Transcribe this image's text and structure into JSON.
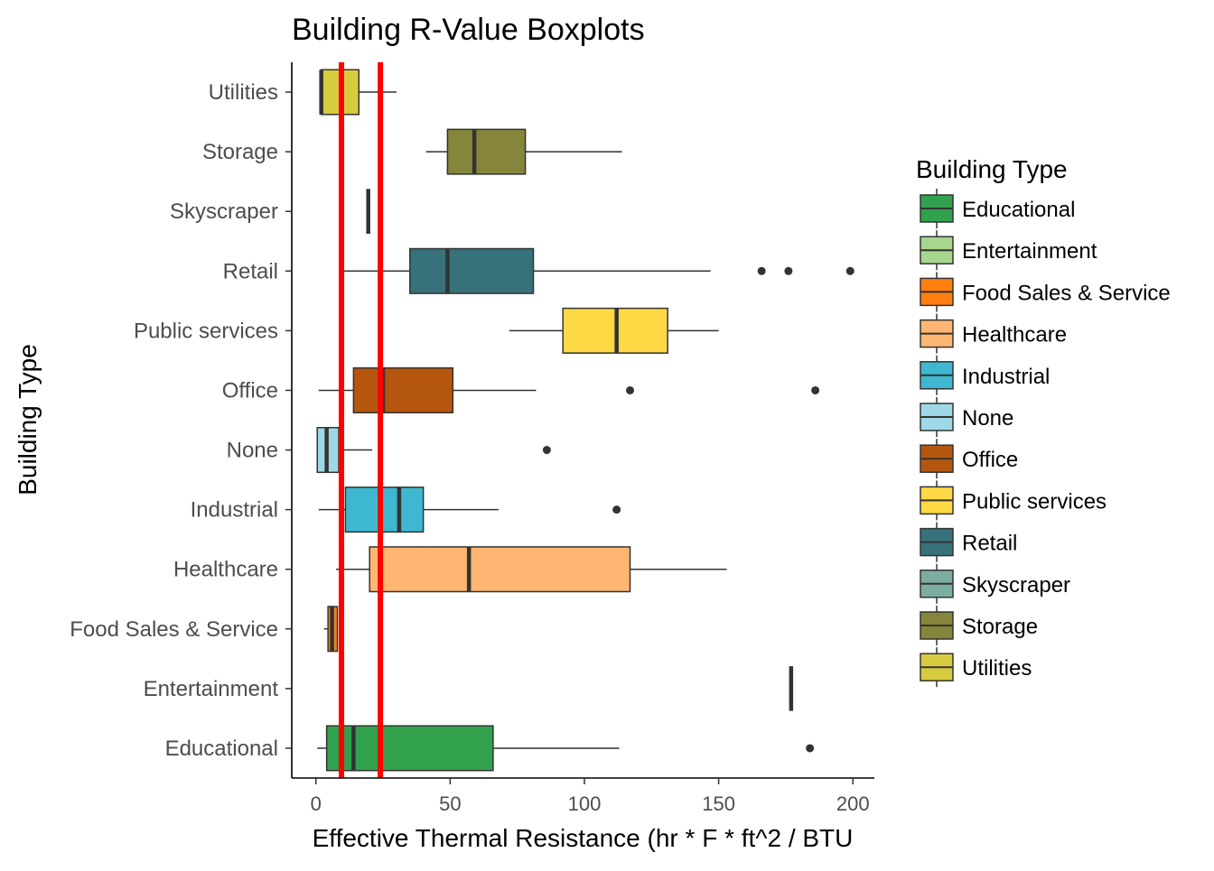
{
  "chart_data": {
    "type": "boxplot",
    "orientation": "horizontal",
    "title": "Building R-Value Boxplots",
    "xlabel": "Effective Thermal Resistance (hr * F * ft^2 / BTU",
    "ylabel": "Building Type",
    "xlim": [
      -9,
      208
    ],
    "x_ticks": [
      0,
      50,
      100,
      150,
      200
    ],
    "grid": false,
    "legend": {
      "title": "Building Type",
      "position": "right",
      "entries": [
        {
          "label": "Educational",
          "color": "#31a14e"
        },
        {
          "label": "Entertainment",
          "color": "#a6d78c"
        },
        {
          "label": "Food Sales & Service",
          "color": "#ff7f0e"
        },
        {
          "label": "Healthcare",
          "color": "#ffb673"
        },
        {
          "label": "Industrial",
          "color": "#3eb8d0"
        },
        {
          "label": "None",
          "color": "#9ed8e6"
        },
        {
          "label": "Office",
          "color": "#b5560f"
        },
        {
          "label": "Public services",
          "color": "#ffd846"
        },
        {
          "label": "Retail",
          "color": "#37727b"
        },
        {
          "label": "Skyscraper",
          "color": "#7cada2"
        },
        {
          "label": "Storage",
          "color": "#85853c"
        },
        {
          "label": "Utilities",
          "color": "#d6cb3f"
        }
      ]
    },
    "reference_lines": [
      {
        "x": 9.5,
        "color": "#ff0000"
      },
      {
        "x": 24,
        "color": "#ff0000"
      }
    ],
    "series": [
      {
        "category": "Educational",
        "whisker_low": 0.5,
        "q1": 4,
        "median": 14,
        "q3": 66,
        "whisker_high": 113,
        "outliers": [
          184
        ]
      },
      {
        "category": "Entertainment",
        "whisker_low": 177,
        "q1": 177,
        "median": 177,
        "q3": 177,
        "whisker_high": 177,
        "outliers": []
      },
      {
        "category": "Food Sales & Service",
        "whisker_low": 3,
        "q1": 4.5,
        "median": 6,
        "q3": 8,
        "whisker_high": 8,
        "outliers": []
      },
      {
        "category": "Healthcare",
        "whisker_low": 7.5,
        "q1": 20,
        "median": 57,
        "q3": 117,
        "whisker_high": 153,
        "outliers": []
      },
      {
        "category": "Industrial",
        "whisker_low": 1,
        "q1": 11,
        "median": 31,
        "q3": 40,
        "whisker_high": 68,
        "outliers": [
          112
        ]
      },
      {
        "category": "None",
        "whisker_low": 0.5,
        "q1": 0.5,
        "median": 4,
        "q3": 8.5,
        "whisker_high": 21,
        "outliers": [
          86
        ]
      },
      {
        "category": "Office",
        "whisker_low": 1,
        "q1": 14,
        "median": 25,
        "q3": 51,
        "whisker_high": 82,
        "outliers": [
          117,
          186
        ]
      },
      {
        "category": "Public services",
        "whisker_low": 72,
        "q1": 92,
        "median": 112,
        "q3": 131,
        "whisker_high": 150,
        "outliers": []
      },
      {
        "category": "Retail",
        "whisker_low": 10,
        "q1": 35,
        "median": 49,
        "q3": 81,
        "whisker_high": 147,
        "outliers": [
          166,
          176,
          199
        ]
      },
      {
        "category": "Skyscraper",
        "whisker_low": 19.5,
        "q1": 19.5,
        "median": 19.5,
        "q3": 19.5,
        "whisker_high": 19.5,
        "outliers": []
      },
      {
        "category": "Storage",
        "whisker_low": 41,
        "q1": 49,
        "median": 59,
        "q3": 78,
        "whisker_high": 114,
        "outliers": []
      },
      {
        "category": "Utilities",
        "whisker_low": 1.5,
        "q1": 2,
        "median": 2,
        "q3": 16,
        "whisker_high": 30,
        "outliers": []
      }
    ]
  }
}
